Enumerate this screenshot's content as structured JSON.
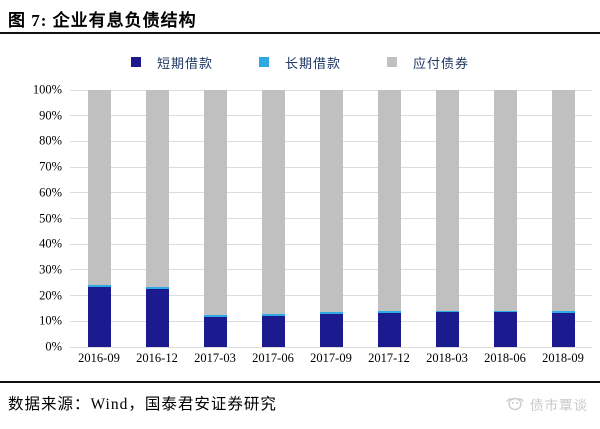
{
  "title": "图 7: 企业有息负债结构",
  "legend": [
    {
      "label": "短期借款",
      "color": "#1b1b8f"
    },
    {
      "label": "长期借款",
      "color": "#2fa9e1"
    },
    {
      "label": "应付债券",
      "color": "#c0c0c0"
    }
  ],
  "chart_data": {
    "type": "bar",
    "stacked": true,
    "unit": "percent",
    "title": "企业有息负债结构",
    "categories": [
      "2016-09",
      "2016-12",
      "2017-03",
      "2017-06",
      "2017-09",
      "2017-12",
      "2018-03",
      "2018-06",
      "2018-09"
    ],
    "series": [
      {
        "name": "短期借款",
        "color": "#1b1b8f",
        "values": [
          23.5,
          22.5,
          11.8,
          12.0,
          12.8,
          13.2,
          13.5,
          13.5,
          13.2
        ]
      },
      {
        "name": "长期借款",
        "color": "#2fa9e1",
        "values": [
          0.8,
          0.8,
          0.7,
          0.7,
          0.7,
          0.7,
          0.7,
          0.7,
          0.7
        ]
      },
      {
        "name": "应付债券",
        "color": "#c0c0c0",
        "values": [
          75.7,
          76.7,
          87.5,
          87.3,
          86.5,
          86.1,
          85.8,
          85.8,
          86.1
        ]
      }
    ],
    "ylim": [
      0,
      100
    ],
    "ytick_labels_top_to_bottom": [
      "100%",
      "90%",
      "80%",
      "70%",
      "60%",
      "50%",
      "40%",
      "30%",
      "20%",
      "10%",
      "0%"
    ],
    "grid": true,
    "legend_position": "top"
  },
  "footer": {
    "source": "数据来源：Wind，国泰君安证券研究",
    "watermark": "债市覃谈"
  }
}
